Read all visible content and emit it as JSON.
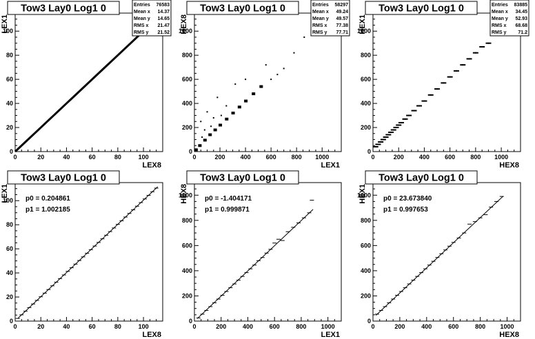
{
  "colors": {
    "frame": "#000000",
    "background": "#ffffff",
    "marker": "#000000"
  },
  "chart_data": [
    {
      "id": "lex1_vs_lex8_scatter",
      "type": "scatter",
      "title": "Tow3 Lay0 Log1 0",
      "xlabel": "LEX8",
      "ylabel": "LEX1",
      "xlim": [
        0,
        115
      ],
      "ylim": [
        0,
        115
      ],
      "xticks": [
        0,
        20,
        40,
        60,
        80,
        100
      ],
      "yticks": [
        0,
        20,
        40,
        60,
        80,
        100
      ],
      "stats": [
        {
          "label": "Entries",
          "value": "76583"
        },
        {
          "label": "Mean x",
          "value": "14.37"
        },
        {
          "label": "Mean y",
          "value": "14.65"
        },
        {
          "label": "RMS x",
          "value": "21.47"
        },
        {
          "label": "RMS y",
          "value": "21.52"
        }
      ],
      "points": [
        [
          0,
          0
        ],
        [
          5,
          5
        ],
        [
          10,
          10
        ],
        [
          15,
          15
        ],
        [
          20,
          20
        ],
        [
          25,
          25
        ],
        [
          30,
          30
        ],
        [
          35,
          35
        ],
        [
          40,
          40
        ],
        [
          45,
          45
        ],
        [
          50,
          50
        ],
        [
          55,
          55
        ],
        [
          60,
          60
        ],
        [
          65,
          65
        ],
        [
          70,
          70
        ],
        [
          75,
          75
        ],
        [
          80,
          80
        ],
        [
          85,
          85
        ],
        [
          90,
          90
        ],
        [
          95,
          95
        ],
        [
          100,
          100
        ],
        [
          105,
          105
        ],
        [
          108,
          108
        ]
      ],
      "points_note": "band"
    },
    {
      "id": "hex8_vs_lex1_scatter",
      "type": "scatter",
      "title": "Tow3 Lay0 Log1 0",
      "xlabel": "LEX1",
      "ylabel": "HEX8",
      "xlim": [
        0,
        1150
      ],
      "ylim": [
        0,
        1150
      ],
      "xticks": [
        0,
        200,
        400,
        600,
        800,
        1000
      ],
      "yticks": [
        0,
        200,
        400,
        600,
        800,
        1000
      ],
      "stats": [
        {
          "label": "Entries",
          "value": "58297"
        },
        {
          "label": "Mean x",
          "value": "49.24"
        },
        {
          "label": "Mean y",
          "value": "49.57"
        },
        {
          "label": "RMS x",
          "value": "77.38"
        },
        {
          "label": "RMS y",
          "value": "77.71"
        }
      ],
      "points": [
        [
          10,
          15
        ],
        [
          40,
          50
        ],
        [
          80,
          95
        ],
        [
          120,
          140
        ],
        [
          160,
          180
        ],
        [
          200,
          220
        ],
        [
          250,
          270
        ],
        [
          300,
          320
        ],
        [
          350,
          370
        ],
        [
          400,
          420
        ],
        [
          460,
          480
        ],
        [
          520,
          540
        ],
        [
          600,
          600
        ],
        [
          650,
          640
        ],
        [
          700,
          690
        ],
        [
          780,
          820
        ],
        [
          860,
          950
        ],
        [
          50,
          250
        ],
        [
          100,
          330
        ],
        [
          150,
          280
        ],
        [
          80,
          180
        ],
        [
          180,
          450
        ],
        [
          250,
          380
        ],
        [
          320,
          560
        ],
        [
          60,
          120
        ],
        [
          130,
          210
        ],
        [
          210,
          300
        ],
        [
          400,
          600
        ],
        [
          560,
          720
        ]
      ]
    },
    {
      "id": "hex1_vs_hex8_scatter",
      "type": "scatter",
      "title": "Tow3 Lay0 Log1 0",
      "xlabel": "HEX8",
      "ylabel": "HEX1",
      "xlim": [
        0,
        1150
      ],
      "ylim": [
        0,
        1150
      ],
      "xticks": [
        0,
        200,
        400,
        600,
        800,
        1000
      ],
      "yticks": [
        0,
        200,
        400,
        600,
        800,
        1000
      ],
      "stats": [
        {
          "label": "Entries",
          "value": "83885"
        },
        {
          "label": "Mean x",
          "value": "34.45"
        },
        {
          "label": "Mean y",
          "value": "52.93"
        },
        {
          "label": "RMS x",
          "value": "68.68"
        },
        {
          "label": "RMS y",
          "value": "71.2"
        }
      ],
      "points": [
        [
          20,
          40
        ],
        [
          40,
          60
        ],
        [
          60,
          80
        ],
        [
          80,
          100
        ],
        [
          100,
          120
        ],
        [
          120,
          140
        ],
        [
          140,
          160
        ],
        [
          160,
          180
        ],
        [
          180,
          200
        ],
        [
          200,
          220
        ],
        [
          220,
          240
        ],
        [
          250,
          270
        ],
        [
          280,
          300
        ],
        [
          320,
          340
        ],
        [
          360,
          380
        ],
        [
          400,
          420
        ],
        [
          450,
          470
        ],
        [
          500,
          520
        ],
        [
          550,
          570
        ],
        [
          600,
          620
        ],
        [
          650,
          670
        ],
        [
          700,
          720
        ],
        [
          750,
          770
        ],
        [
          800,
          820
        ],
        [
          850,
          870
        ],
        [
          900,
          900
        ]
      ]
    },
    {
      "id": "lex1_vs_lex8_profile",
      "type": "line",
      "title": "Tow3 Lay0 Log1 0",
      "xlabel": "LEX8",
      "ylabel": "LEX1",
      "xlim": [
        0,
        115
      ],
      "ylim": [
        0,
        115
      ],
      "xticks": [
        0,
        20,
        40,
        60,
        80,
        100
      ],
      "yticks": [
        0,
        20,
        40,
        60,
        80,
        100
      ],
      "fit": [
        {
          "label": "p0 = 0.204861"
        },
        {
          "label": "p1 = 1.002185"
        }
      ],
      "fit_params": {
        "p0": 0.204861,
        "p1": 1.002185
      },
      "points": [
        [
          2,
          2.2
        ],
        [
          5,
          5.2
        ],
        [
          8,
          8.2
        ],
        [
          11,
          11.2
        ],
        [
          14,
          14.2
        ],
        [
          17,
          17.2
        ],
        [
          20,
          20.2
        ],
        [
          23,
          23.2
        ],
        [
          26,
          26.2
        ],
        [
          29,
          29.3
        ],
        [
          32,
          32.3
        ],
        [
          35,
          35.3
        ],
        [
          38,
          38.3
        ],
        [
          41,
          41.3
        ],
        [
          44,
          44.3
        ],
        [
          47,
          47.3
        ],
        [
          50,
          50.3
        ],
        [
          53,
          53.3
        ],
        [
          56,
          56.3
        ],
        [
          59,
          59.3
        ],
        [
          62,
          62.3
        ],
        [
          65,
          65.3
        ],
        [
          68,
          68.3
        ],
        [
          71,
          71.3
        ],
        [
          74,
          74.3
        ],
        [
          77,
          77.3
        ],
        [
          80,
          80.3
        ],
        [
          83,
          83.3
        ],
        [
          86,
          86.4
        ],
        [
          89,
          89.4
        ],
        [
          92,
          92.4
        ],
        [
          95,
          95.4
        ],
        [
          98,
          98.4
        ],
        [
          101,
          101.4
        ],
        [
          104,
          104.4
        ],
        [
          107,
          107.4
        ],
        [
          110,
          110.4
        ]
      ]
    },
    {
      "id": "hex8_vs_lex1_profile",
      "type": "line",
      "title": "Tow3 Lay0 Log1 0",
      "xlabel": "LEX1",
      "ylabel": "HEX8",
      "xlim": [
        0,
        1100
      ],
      "ylim": [
        0,
        1100
      ],
      "xticks": [
        0,
        200,
        400,
        600,
        800,
        1000
      ],
      "yticks": [
        0,
        200,
        400,
        600,
        800,
        1000
      ],
      "fit": [
        {
          "label": "p0 = -1.404171"
        },
        {
          "label": "p1 = 0.999871"
        }
      ],
      "fit_params": {
        "p0": -1.404171,
        "p1": 0.999871
      },
      "points": [
        [
          30,
          25
        ],
        [
          60,
          55
        ],
        [
          90,
          85
        ],
        [
          120,
          115
        ],
        [
          150,
          145
        ],
        [
          180,
          175
        ],
        [
          210,
          205
        ],
        [
          240,
          235
        ],
        [
          270,
          265
        ],
        [
          300,
          295
        ],
        [
          330,
          325
        ],
        [
          360,
          355
        ],
        [
          390,
          385
        ],
        [
          420,
          415
        ],
        [
          450,
          445
        ],
        [
          480,
          480
        ],
        [
          510,
          505
        ],
        [
          540,
          540
        ],
        [
          570,
          570
        ],
        [
          600,
          620
        ],
        [
          630,
          650
        ],
        [
          660,
          640
        ],
        [
          700,
          710
        ],
        [
          740,
          745
        ],
        [
          780,
          780
        ],
        [
          820,
          820
        ],
        [
          860,
          860
        ],
        [
          880,
          960
        ]
      ]
    },
    {
      "id": "hex1_vs_hex8_profile",
      "type": "line",
      "title": "Tow3 Lay0 Log1 0",
      "xlabel": "HEX8",
      "ylabel": "HEX1",
      "xlim": [
        0,
        1100
      ],
      "ylim": [
        0,
        1100
      ],
      "xticks": [
        0,
        200,
        400,
        600,
        800,
        1000
      ],
      "yticks": [
        0,
        200,
        400,
        600,
        800,
        1000
      ],
      "fit": [
        {
          "label": "p0 = 23.673840"
        },
        {
          "label": "p1 = 0.997653"
        }
      ],
      "fit_params": {
        "p0": 23.67384,
        "p1": 0.997653
      },
      "points": [
        [
          30,
          55
        ],
        [
          60,
          85
        ],
        [
          90,
          115
        ],
        [
          120,
          145
        ],
        [
          150,
          175
        ],
        [
          180,
          205
        ],
        [
          210,
          235
        ],
        [
          240,
          265
        ],
        [
          270,
          295
        ],
        [
          300,
          325
        ],
        [
          330,
          355
        ],
        [
          360,
          385
        ],
        [
          390,
          415
        ],
        [
          420,
          445
        ],
        [
          450,
          475
        ],
        [
          480,
          505
        ],
        [
          510,
          535
        ],
        [
          540,
          565
        ],
        [
          570,
          595
        ],
        [
          600,
          625
        ],
        [
          640,
          660
        ],
        [
          680,
          700
        ],
        [
          720,
          770
        ],
        [
          760,
          790
        ],
        [
          800,
          820
        ],
        [
          840,
          845
        ],
        [
          880,
          905
        ],
        [
          920,
          950
        ],
        [
          960,
          990
        ]
      ]
    }
  ]
}
